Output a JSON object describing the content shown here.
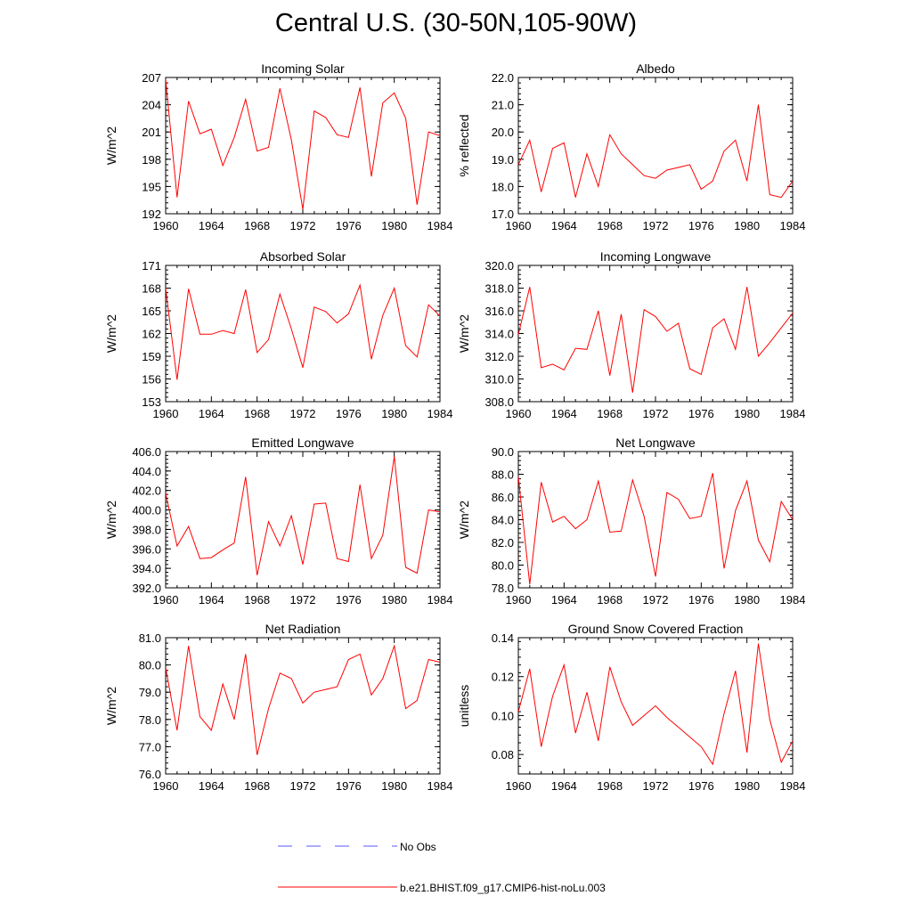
{
  "title": "Central U.S. (30-50N,105-90W)",
  "colors": {
    "series": "#ff0000",
    "obs": "#5a5aff",
    "axis": "#000000"
  },
  "legend": {
    "items": [
      {
        "label": "No Obs",
        "style": "dashed",
        "color": "#5a5aff"
      },
      {
        "label": "b.e21.BHIST.f09_g17.CMIP6-hist-noLu.003",
        "style": "solid",
        "color": "#ff0000"
      }
    ]
  },
  "chart_data": [
    {
      "type": "line",
      "title": "Incoming Solar",
      "ylabel": "W/m^2",
      "xlim": [
        1960,
        1984
      ],
      "ylim": [
        192,
        207
      ],
      "xticks": [
        1960,
        1964,
        1968,
        1972,
        1976,
        1980,
        1984
      ],
      "yticks": [
        "192",
        "195",
        "198",
        "201",
        "204",
        "207"
      ],
      "x": [
        1960,
        1961,
        1962,
        1963,
        1964,
        1965,
        1966,
        1967,
        1968,
        1969,
        1970,
        1971,
        1972,
        1973,
        1974,
        1975,
        1976,
        1977,
        1978,
        1979,
        1980,
        1981,
        1982,
        1983,
        1984
      ],
      "series": [
        {
          "name": "b.e21.BHIST.f09_g17.CMIP6-hist-noLu.003",
          "values": [
            206.8,
            193.8,
            204.4,
            200.8,
            201.3,
            197.3,
            200.4,
            204.6,
            198.9,
            199.3,
            205.8,
            200.1,
            192.5,
            203.3,
            202.6,
            200.7,
            200.4,
            205.9,
            196.1,
            204.2,
            205.3,
            202.5,
            193.0,
            201.0,
            200.6
          ]
        }
      ]
    },
    {
      "type": "line",
      "title": "Albedo",
      "ylabel": "% reflected",
      "xlim": [
        1960,
        1984
      ],
      "ylim": [
        17.0,
        22.0
      ],
      "xticks": [
        1960,
        1964,
        1968,
        1972,
        1976,
        1980,
        1984
      ],
      "yticks": [
        "17.0",
        "18.0",
        "19.0",
        "20.0",
        "21.0",
        "22.0"
      ],
      "x": [
        1960,
        1961,
        1962,
        1963,
        1964,
        1965,
        1966,
        1967,
        1968,
        1969,
        1970,
        1971,
        1972,
        1973,
        1974,
        1975,
        1976,
        1977,
        1978,
        1979,
        1980,
        1981,
        1982,
        1983,
        1984
      ],
      "series": [
        {
          "name": "b.e21.BHIST.f09_g17.CMIP6-hist-noLu.003",
          "values": [
            18.8,
            19.7,
            17.8,
            19.4,
            19.6,
            17.6,
            19.2,
            18.0,
            19.9,
            19.2,
            18.8,
            18.4,
            18.3,
            18.6,
            18.7,
            18.8,
            17.9,
            18.2,
            19.3,
            19.7,
            18.2,
            21.0,
            17.7,
            17.6,
            18.2
          ]
        }
      ]
    },
    {
      "type": "line",
      "title": "Absorbed Solar",
      "ylabel": "W/m^2",
      "xlim": [
        1960,
        1984
      ],
      "ylim": [
        153,
        171
      ],
      "xticks": [
        1960,
        1964,
        1968,
        1972,
        1976,
        1980,
        1984
      ],
      "yticks": [
        "153",
        "156",
        "159",
        "162",
        "165",
        "168",
        "171"
      ],
      "x": [
        1960,
        1961,
        1962,
        1963,
        1964,
        1965,
        1966,
        1967,
        1968,
        1969,
        1970,
        1971,
        1972,
        1973,
        1974,
        1975,
        1976,
        1977,
        1978,
        1979,
        1980,
        1981,
        1982,
        1983,
        1984
      ],
      "series": [
        {
          "name": "b.e21.BHIST.f09_g17.CMIP6-hist-noLu.003",
          "values": [
            168.0,
            155.9,
            167.9,
            161.9,
            161.9,
            162.4,
            162.0,
            167.8,
            159.5,
            161.2,
            167.2,
            162.6,
            157.5,
            165.5,
            164.9,
            163.4,
            164.6,
            168.4,
            158.6,
            164.4,
            168.0,
            160.4,
            158.9,
            165.8,
            164.3
          ]
        }
      ]
    },
    {
      "type": "line",
      "title": "Incoming Longwave",
      "ylabel": "W/m^2",
      "xlim": [
        1960,
        1984
      ],
      "ylim": [
        308.0,
        320.0
      ],
      "xticks": [
        1960,
        1964,
        1968,
        1972,
        1976,
        1980,
        1984
      ],
      "yticks": [
        "308.0",
        "310.0",
        "312.0",
        "314.0",
        "316.0",
        "318.0",
        "320.0"
      ],
      "x": [
        1960,
        1961,
        1962,
        1963,
        1964,
        1965,
        1966,
        1967,
        1968,
        1969,
        1970,
        1971,
        1972,
        1973,
        1974,
        1975,
        1976,
        1977,
        1978,
        1979,
        1980,
        1981,
        1982,
        1983,
        1984
      ],
      "series": [
        {
          "name": "b.e21.BHIST.f09_g17.CMIP6-hist-noLu.003",
          "values": [
            313.9,
            318.1,
            311.0,
            311.3,
            310.8,
            312.7,
            312.6,
            316.0,
            310.3,
            315.7,
            308.8,
            316.1,
            315.5,
            314.2,
            314.9,
            310.9,
            310.4,
            314.5,
            315.3,
            312.6,
            318.1,
            312.0,
            313.2,
            314.5,
            315.8
          ]
        }
      ]
    },
    {
      "type": "line",
      "title": "Emitted Longwave",
      "ylabel": "W/m^2",
      "xlim": [
        1960,
        1984
      ],
      "ylim": [
        392.0,
        406.0
      ],
      "xticks": [
        1960,
        1964,
        1968,
        1972,
        1976,
        1980,
        1984
      ],
      "yticks": [
        "392.0",
        "394.0",
        "396.0",
        "398.0",
        "400.0",
        "402.0",
        "404.0",
        "406.0"
      ],
      "x": [
        1960,
        1961,
        1962,
        1963,
        1964,
        1965,
        1966,
        1967,
        1968,
        1969,
        1970,
        1971,
        1972,
        1973,
        1974,
        1975,
        1976,
        1977,
        1978,
        1979,
        1980,
        1981,
        1982,
        1983,
        1984
      ],
      "series": [
        {
          "name": "b.e21.BHIST.f09_g17.CMIP6-hist-noLu.003",
          "values": [
            401.7,
            396.3,
            398.3,
            395.0,
            395.1,
            395.9,
            396.6,
            403.4,
            393.3,
            398.8,
            396.3,
            399.4,
            394.4,
            400.6,
            400.7,
            395.0,
            394.7,
            402.6,
            395.0,
            397.4,
            405.5,
            394.1,
            393.5,
            400.0,
            399.8
          ]
        }
      ]
    },
    {
      "type": "line",
      "title": "Net Longwave",
      "ylabel": "W/m^2",
      "xlim": [
        1960,
        1984
      ],
      "ylim": [
        78.0,
        90.0
      ],
      "xticks": [
        1960,
        1964,
        1968,
        1972,
        1976,
        1980,
        1984
      ],
      "yticks": [
        "78.0",
        "80.0",
        "82.0",
        "84.0",
        "86.0",
        "88.0",
        "90.0"
      ],
      "x": [
        1960,
        1961,
        1962,
        1963,
        1964,
        1965,
        1966,
        1967,
        1968,
        1969,
        1970,
        1971,
        1972,
        1973,
        1974,
        1975,
        1976,
        1977,
        1978,
        1979,
        1980,
        1981,
        1982,
        1983,
        1984
      ],
      "series": [
        {
          "name": "b.e21.BHIST.f09_g17.CMIP6-hist-noLu.003",
          "values": [
            87.8,
            78.3,
            87.3,
            83.8,
            84.3,
            83.2,
            84.0,
            87.4,
            82.9,
            83.0,
            87.5,
            84.3,
            79.0,
            86.4,
            85.8,
            84.1,
            84.3,
            88.1,
            79.7,
            84.8,
            87.4,
            82.2,
            80.3,
            85.6,
            84.0
          ]
        }
      ]
    },
    {
      "type": "line",
      "title": "Net Radiation",
      "ylabel": "W/m^2",
      "xlim": [
        1960,
        1984
      ],
      "ylim": [
        76.0,
        81.0
      ],
      "xticks": [
        1960,
        1964,
        1968,
        1972,
        1976,
        1980,
        1984
      ],
      "yticks": [
        "76.0",
        "77.0",
        "78.0",
        "79.0",
        "80.0",
        "81.0"
      ],
      "x": [
        1960,
        1961,
        1962,
        1963,
        1964,
        1965,
        1966,
        1967,
        1968,
        1969,
        1970,
        1971,
        1972,
        1973,
        1974,
        1975,
        1976,
        1977,
        1978,
        1979,
        1980,
        1981,
        1982,
        1983,
        1984
      ],
      "series": [
        {
          "name": "b.e21.BHIST.f09_g17.CMIP6-hist-noLu.003",
          "values": [
            79.9,
            77.6,
            80.7,
            78.1,
            77.6,
            79.3,
            78.0,
            80.4,
            76.7,
            78.4,
            79.7,
            79.5,
            78.6,
            79.0,
            79.1,
            79.2,
            80.2,
            80.4,
            78.9,
            79.5,
            80.7,
            78.4,
            78.7,
            80.2,
            80.1
          ]
        }
      ]
    },
    {
      "type": "line",
      "title": "Ground Snow Covered Fraction",
      "ylabel": "unitless",
      "xlim": [
        1960,
        1984
      ],
      "ylim": [
        0.07,
        0.14
      ],
      "xticks": [
        1960,
        1964,
        1968,
        1972,
        1976,
        1980,
        1984
      ],
      "yticks": [
        "0.08",
        "0.10",
        "0.12",
        "0.14"
      ],
      "x": [
        1960,
        1961,
        1962,
        1963,
        1964,
        1965,
        1966,
        1967,
        1968,
        1969,
        1970,
        1971,
        1972,
        1973,
        1974,
        1975,
        1976,
        1977,
        1978,
        1979,
        1980,
        1981,
        1982,
        1983,
        1984
      ],
      "series": [
        {
          "name": "b.e21.BHIST.f09_g17.CMIP6-hist-noLu.003",
          "values": [
            0.102,
            0.124,
            0.084,
            0.11,
            0.126,
            0.091,
            0.112,
            0.087,
            0.125,
            0.107,
            0.095,
            0.1,
            0.105,
            0.099,
            0.094,
            0.089,
            0.084,
            0.075,
            0.101,
            0.123,
            0.081,
            0.137,
            0.098,
            0.076,
            0.087
          ]
        }
      ]
    }
  ]
}
